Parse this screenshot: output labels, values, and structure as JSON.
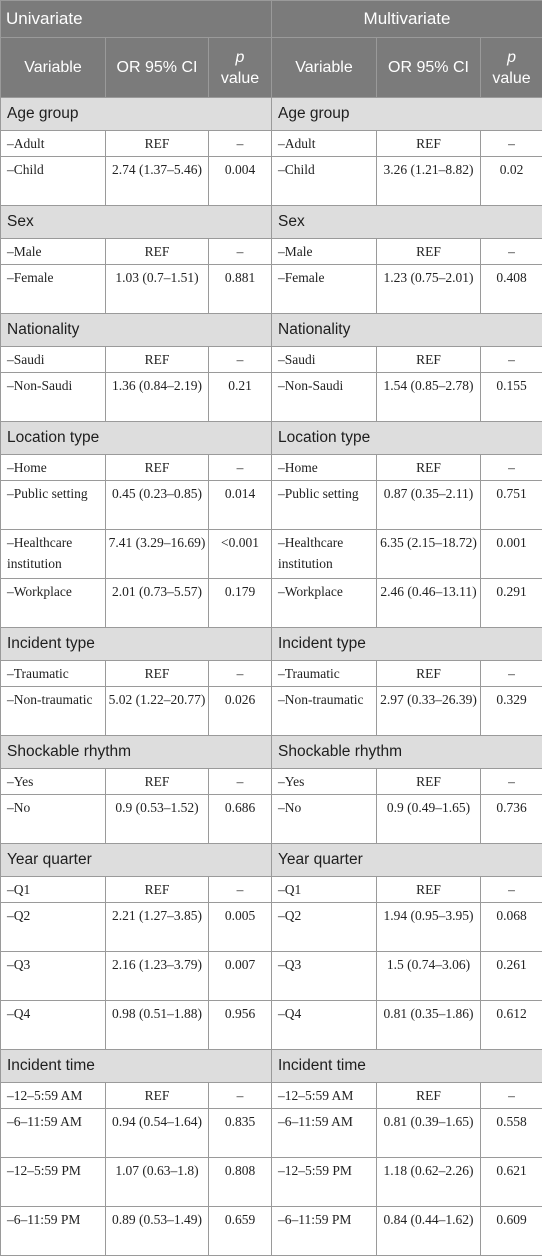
{
  "header": {
    "univariate": "Univariate",
    "multivariate": "Multivariate",
    "col_variable": "Variable",
    "col_or": "OR 95% CI",
    "col_p_italic": "p",
    "col_p_rest": "value"
  },
  "sections": [
    {
      "title": "Age group",
      "rows": [
        {
          "u_var": "–Adult",
          "u_or": "REF",
          "u_p": "–",
          "m_var": "–Adult",
          "m_or": "REF",
          "m_p": "–"
        },
        {
          "u_var": "–Child",
          "u_or": "2.74 (1.37–5.46)",
          "u_p": "0.004",
          "m_var": "–Child",
          "m_or": "3.26 (1.21–8.82)",
          "m_p": "0.02"
        }
      ]
    },
    {
      "title": "Sex",
      "rows": [
        {
          "u_var": "–Male",
          "u_or": "REF",
          "u_p": "–",
          "m_var": "–Male",
          "m_or": "REF",
          "m_p": "–"
        },
        {
          "u_var": "–Female",
          "u_or": "1.03 (0.7–1.51)",
          "u_p": "0.881",
          "m_var": "–Female",
          "m_or": "1.23 (0.75–2.01)",
          "m_p": "0.408"
        }
      ]
    },
    {
      "title": "Nationality",
      "rows": [
        {
          "u_var": "–Saudi",
          "u_or": "REF",
          "u_p": "–",
          "m_var": "–Saudi",
          "m_or": "REF",
          "m_p": "–"
        },
        {
          "u_var": "–Non-Saudi",
          "u_or": "1.36 (0.84–2.19)",
          "u_p": "0.21",
          "m_var": "–Non-Saudi",
          "m_or": "1.54 (0.85–2.78)",
          "m_p": "0.155"
        }
      ]
    },
    {
      "title": "Location type",
      "rows": [
        {
          "u_var": "–Home",
          "u_or": "REF",
          "u_p": "–",
          "m_var": "–Home",
          "m_or": "REF",
          "m_p": "–"
        },
        {
          "u_var": "–Public setting",
          "u_or": "0.45 (0.23–0.85)",
          "u_p": "0.014",
          "m_var": "–Public setting",
          "m_or": "0.87 (0.35–2.11)",
          "m_p": "0.751"
        },
        {
          "u_var": "–Healthcare institution",
          "u_or": "7.41 (3.29–16.69)",
          "u_p": "<0.001",
          "m_var": "–Healthcare institution",
          "m_or": "6.35 (2.15–18.72)",
          "m_p": "0.001"
        },
        {
          "u_var": "–Workplace",
          "u_or": "2.01 (0.73–5.57)",
          "u_p": "0.179",
          "m_var": "–Workplace",
          "m_or": "2.46 (0.46–13.11)",
          "m_p": "0.291"
        }
      ]
    },
    {
      "title": "Incident type",
      "rows": [
        {
          "u_var": "–Traumatic",
          "u_or": "REF",
          "u_p": "–",
          "m_var": "–Traumatic",
          "m_or": "REF",
          "m_p": "–"
        },
        {
          "u_var": "–Non-traumatic",
          "u_or": "5.02 (1.22–20.77)",
          "u_p": "0.026",
          "m_var": "–Non-traumatic",
          "m_or": "2.97 (0.33–26.39)",
          "m_p": "0.329"
        }
      ]
    },
    {
      "title": "Shockable rhythm",
      "rows": [
        {
          "u_var": "–Yes",
          "u_or": "REF",
          "u_p": "–",
          "m_var": "–Yes",
          "m_or": "REF",
          "m_p": "–"
        },
        {
          "u_var": "–No",
          "u_or": "0.9 (0.53–1.52)",
          "u_p": "0.686",
          "m_var": "–No",
          "m_or": "0.9 (0.49–1.65)",
          "m_p": "0.736"
        }
      ]
    },
    {
      "title": "Year quarter",
      "rows": [
        {
          "u_var": "–Q1",
          "u_or": "REF",
          "u_p": "–",
          "m_var": "–Q1",
          "m_or": "REF",
          "m_p": "–"
        },
        {
          "u_var": "–Q2",
          "u_or": "2.21 (1.27–3.85)",
          "u_p": "0.005",
          "m_var": "–Q2",
          "m_or": "1.94 (0.95–3.95)",
          "m_p": "0.068"
        },
        {
          "u_var": "–Q3",
          "u_or": "2.16 (1.23–3.79)",
          "u_p": "0.007",
          "m_var": "–Q3",
          "m_or": "1.5 (0.74–3.06)",
          "m_p": "0.261"
        },
        {
          "u_var": "–Q4",
          "u_or": "0.98 (0.51–1.88)",
          "u_p": "0.956",
          "m_var": "–Q4",
          "m_or": "0.81 (0.35–1.86)",
          "m_p": "0.612"
        }
      ]
    },
    {
      "title": "Incident time",
      "rows": [
        {
          "u_var": "–12–5:59 AM",
          "u_or": "REF",
          "u_p": "–",
          "m_var": "–12–5:59 AM",
          "m_or": "REF",
          "m_p": "–"
        },
        {
          "u_var": "–6–11:59 AM",
          "u_or": "0.94 (0.54–1.64)",
          "u_p": "0.835",
          "m_var": "–6–11:59 AM",
          "m_or": "0.81 (0.39–1.65)",
          "m_p": "0.558"
        },
        {
          "u_var": "–12–5:59 PM",
          "u_or": "1.07 (0.63–1.8)",
          "u_p": "0.808",
          "m_var": "–12–5:59 PM",
          "m_or": "1.18 (0.62–2.26)",
          "m_p": "0.621"
        },
        {
          "u_var": "–6–11:59 PM",
          "u_or": "0.89 (0.53–1.49)",
          "u_p": "0.659",
          "m_var": "–6–11:59 PM",
          "m_or": "0.84 (0.44–1.62)",
          "m_p": "0.609"
        }
      ]
    }
  ]
}
